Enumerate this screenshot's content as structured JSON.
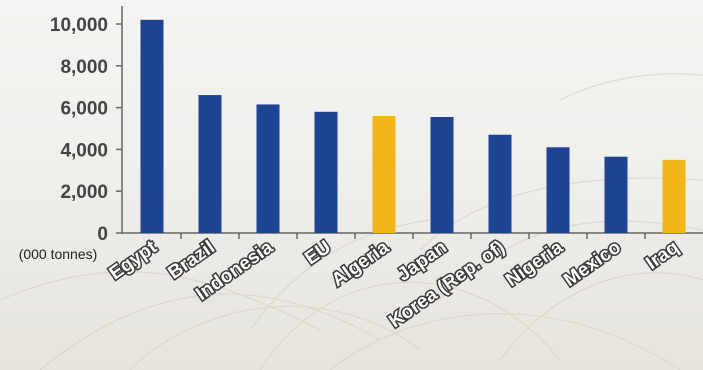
{
  "chart_data": {
    "type": "bar",
    "unit_label": "(000 tonnes)",
    "categories": [
      "Egypt",
      "Brazil",
      "Indonesia",
      "EU",
      "Algeria",
      "Japan",
      "Korea (Rep. of)",
      "Nigeria",
      "Mexico",
      "Iraq"
    ],
    "values": [
      10200,
      6600,
      6150,
      5800,
      5600,
      5550,
      4700,
      4100,
      3650,
      3500
    ],
    "highlight": [
      "Algeria",
      "Iraq"
    ],
    "yticks": [
      "0",
      "2,000",
      "4,000",
      "6,000",
      "8,000",
      "10,000"
    ],
    "ylim": [
      0,
      11000
    ],
    "grid": false,
    "colors": {
      "bar": "#1f4393",
      "highlight": "#f2b51c",
      "axis": "#666666"
    }
  }
}
